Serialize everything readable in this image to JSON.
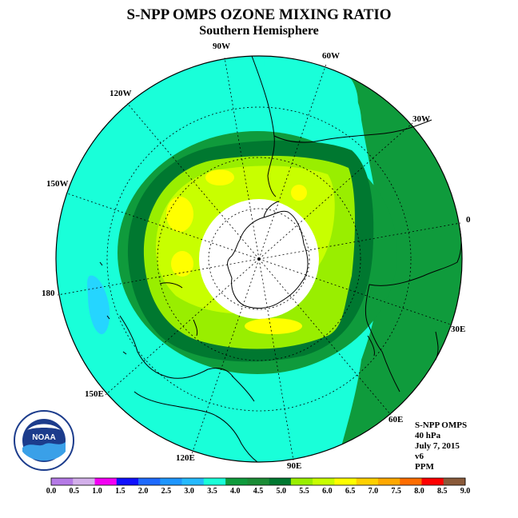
{
  "title": "S-NPP OMPS OZONE MIXING RATIO",
  "subtitle": "Southern Hemisphere",
  "longitude_labels": [
    "90W",
    "60W",
    "30W",
    "0",
    "30E",
    "60E",
    "90E",
    "120E",
    "150E",
    "180",
    "150W",
    "120W"
  ],
  "info": {
    "instrument": "S-NPP OMPS",
    "level": "40 hPa",
    "date": "July 7, 2015",
    "version": "v6",
    "units": "PPM"
  },
  "logo_text": "NOAA",
  "colors": {
    "cyan": "#19ffd9",
    "deep_cyan": "#25d5ff",
    "green": "#0f9b3c",
    "dark_green": "#007830",
    "lime": "#99ee00",
    "yellow_green": "#c8ff00",
    "yellow": "#ffff00",
    "land": "#000000"
  },
  "colorbar": {
    "ticks": [
      "0.0",
      "0.5",
      "1.0",
      "1.5",
      "2.0",
      "2.5",
      "3.0",
      "3.5",
      "4.0",
      "4.5",
      "5.0",
      "5.5",
      "6.0",
      "6.5",
      "7.0",
      "7.5",
      "8.0",
      "8.5",
      "9.0"
    ],
    "colors": [
      "#b57ae6",
      "#d3b0ea",
      "#f300f3",
      "#1010ff",
      "#1e6aff",
      "#1e96ff",
      "#25baff",
      "#19ffd9",
      "#0f9b3c",
      "#1b8c36",
      "#007830",
      "#99ee00",
      "#c8ff00",
      "#ffff00",
      "#ffd000",
      "#ffa800",
      "#ff6d00",
      "#ff0000",
      "#8a5a3a"
    ]
  }
}
